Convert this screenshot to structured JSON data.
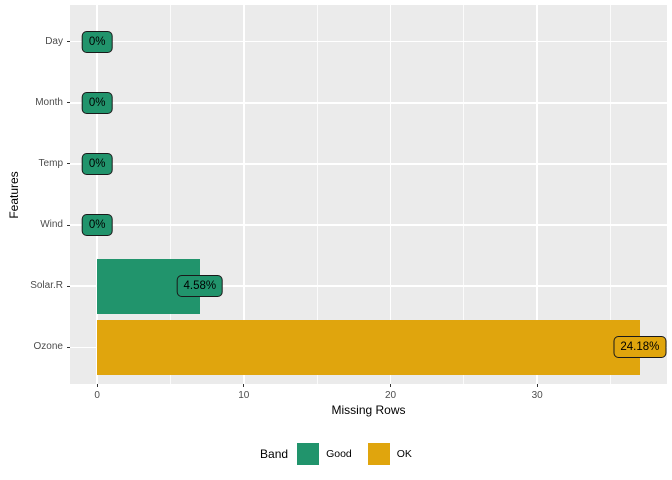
{
  "chart_data": {
    "type": "bar",
    "orientation": "horizontal",
    "title": "",
    "xlabel": "Missing Rows",
    "ylabel": "Features",
    "categories": [
      "Day",
      "Month",
      "Temp",
      "Wind",
      "Solar.R",
      "Ozone"
    ],
    "series": [
      {
        "feature": "Day",
        "missing_rows": 0,
        "pct_label": "0%",
        "band": "Good"
      },
      {
        "feature": "Month",
        "missing_rows": 0,
        "pct_label": "0%",
        "band": "Good"
      },
      {
        "feature": "Temp",
        "missing_rows": 0,
        "pct_label": "0%",
        "band": "Good"
      },
      {
        "feature": "Wind",
        "missing_rows": 0,
        "pct_label": "0%",
        "band": "Good"
      },
      {
        "feature": "Solar.R",
        "missing_rows": 7,
        "pct_label": "4.58%",
        "band": "Good"
      },
      {
        "feature": "Ozone",
        "missing_rows": 37,
        "pct_label": "24.18%",
        "band": "OK"
      }
    ],
    "x_axis": {
      "ticks": [
        0,
        10,
        20,
        30
      ],
      "minor_ticks": [
        5,
        15,
        25,
        35
      ],
      "range": [
        -1.85,
        38.85
      ]
    },
    "legend": {
      "title": "Band",
      "entries": [
        {
          "label": "Good",
          "band": "Good"
        },
        {
          "label": "OK",
          "band": "OK"
        }
      ]
    },
    "colors": {
      "Good": "#21946C",
      "OK": "#E0A50D"
    },
    "style": {
      "panel_bg": "#EBEBEB",
      "grid_color": "#FFFFFF",
      "tick_text_color": "#4D4D4D",
      "axis_title_color": "#000000",
      "label_border_color": "#1A1A1A",
      "label_text_color": "#000000"
    }
  }
}
